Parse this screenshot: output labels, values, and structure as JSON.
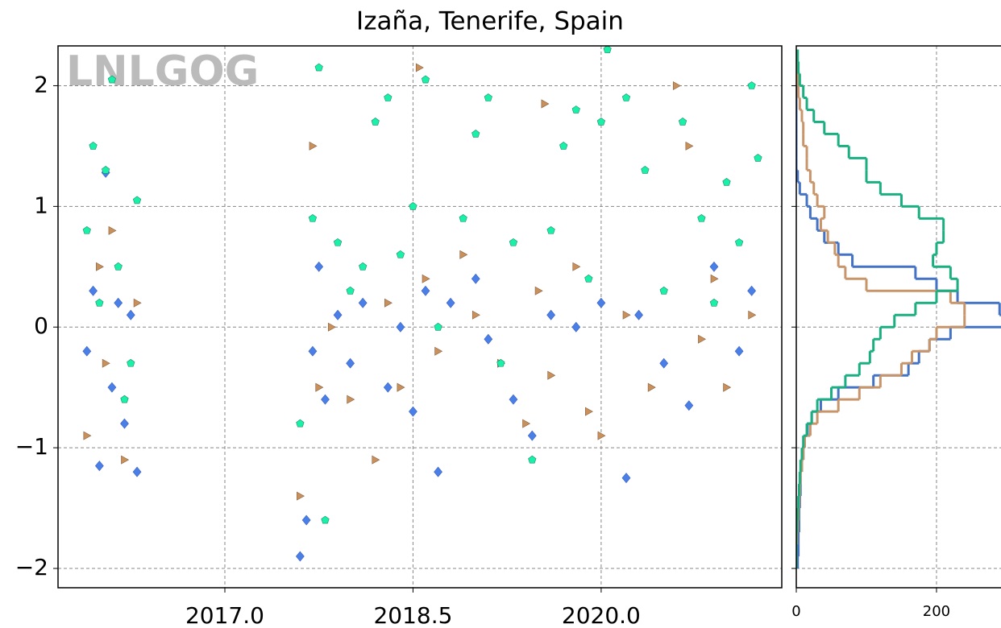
{
  "chart_data": [
    {
      "type": "scatter",
      "title": "Izaña, Tenerife, Spain",
      "watermark": "LNLGOG",
      "xlim": [
        2015.67,
        2021.44
      ],
      "ylim": [
        -2.16,
        2.33
      ],
      "xticks": [
        {
          "value": 2017,
          "label": "2017.0"
        },
        {
          "value": 2018.5,
          "label": "2018.5"
        },
        {
          "value": 2020,
          "label": "2020.0"
        }
      ],
      "yticks": [
        {
          "value": -2,
          "label": "−2"
        },
        {
          "value": -1,
          "label": "−1"
        },
        0,
        1,
        2
      ],
      "grid": true,
      "series": [
        {
          "color": "#4a7fe8",
          "marker": "diamond",
          "x": [
            2015.9,
            2015.95,
            2016.0,
            2016.05,
            2016.1,
            2016.15,
            2016.2,
            2016.3,
            2016.25,
            2017.6,
            2017.65,
            2017.7,
            2017.75,
            2017.8,
            2017.9,
            2018.0,
            2018.1,
            2018.3,
            2018.4,
            2018.5,
            2018.6,
            2018.7,
            2018.8,
            2019.0,
            2019.1,
            2019.3,
            2019.45,
            2019.6,
            2019.8,
            2020.0,
            2020.2,
            2020.3,
            2020.5,
            2020.7,
            2020.9,
            2021.1,
            2021.2
          ],
          "values": [
            -0.2,
            0.3,
            -1.15,
            1.28,
            -0.5,
            0.2,
            -0.8,
            -1.2,
            0.1,
            -1.9,
            -1.6,
            -0.2,
            0.5,
            -0.6,
            0.1,
            -0.3,
            0.2,
            -0.5,
            0.0,
            -0.7,
            0.3,
            -1.2,
            0.2,
            0.4,
            -0.1,
            -0.6,
            -0.9,
            0.1,
            0.0,
            0.2,
            -1.25,
            0.1,
            -0.3,
            -0.65,
            0.5,
            -0.2,
            0.3
          ]
        },
        {
          "color": "#c8905a",
          "marker": "triangle",
          "x": [
            2015.9,
            2016.0,
            2016.05,
            2016.1,
            2016.2,
            2016.3,
            2017.6,
            2017.7,
            2017.75,
            2017.85,
            2018.0,
            2018.2,
            2018.3,
            2018.4,
            2018.55,
            2018.6,
            2018.7,
            2018.9,
            2019.0,
            2019.2,
            2019.4,
            2019.5,
            2019.55,
            2019.6,
            2019.8,
            2019.9,
            2020.0,
            2020.2,
            2020.4,
            2020.6,
            2020.7,
            2020.8,
            2020.9,
            2021.0,
            2021.2
          ],
          "values": [
            -0.9,
            0.5,
            -0.3,
            0.8,
            -1.1,
            0.2,
            -1.4,
            1.5,
            -0.5,
            0.0,
            -0.6,
            -1.1,
            0.2,
            -0.5,
            2.15,
            0.4,
            -0.2,
            0.6,
            0.1,
            -0.3,
            -0.8,
            0.3,
            1.85,
            -0.4,
            0.5,
            -0.7,
            -0.9,
            0.1,
            -0.5,
            2.0,
            1.5,
            -0.1,
            0.4,
            -0.5,
            0.1
          ]
        },
        {
          "color": "#19f0a8",
          "marker": "pentagon",
          "x": [
            2015.9,
            2015.95,
            2016.0,
            2016.05,
            2016.1,
            2016.15,
            2016.2,
            2016.25,
            2016.3,
            2017.6,
            2017.7,
            2017.75,
            2017.8,
            2017.9,
            2018.0,
            2018.1,
            2018.2,
            2018.3,
            2018.4,
            2018.5,
            2018.6,
            2018.7,
            2018.9,
            2019.0,
            2019.1,
            2019.2,
            2019.3,
            2019.45,
            2019.6,
            2019.7,
            2019.8,
            2019.9,
            2020.0,
            2020.05,
            2020.2,
            2020.35,
            2020.5,
            2020.65,
            2020.8,
            2020.9,
            2021.0,
            2021.1,
            2021.2,
            2021.25
          ],
          "values": [
            0.8,
            1.5,
            0.2,
            1.3,
            2.05,
            0.5,
            -0.6,
            -0.3,
            1.05,
            -0.8,
            0.9,
            2.15,
            -1.6,
            0.7,
            0.3,
            0.5,
            1.7,
            1.9,
            0.6,
            1.0,
            2.05,
            0.0,
            0.9,
            1.6,
            1.9,
            -0.3,
            0.7,
            -1.1,
            0.8,
            1.5,
            1.8,
            0.4,
            1.7,
            2.3,
            1.9,
            1.3,
            0.3,
            1.7,
            0.9,
            0.2,
            1.2,
            0.7,
            2.0,
            1.4
          ]
        }
      ]
    },
    {
      "type": "histogram",
      "orientation": "horizontal",
      "xlim": [
        0,
        292
      ],
      "ylim": [
        -2.16,
        2.33
      ],
      "xticks": [
        0,
        200
      ],
      "bins": [
        -2.0,
        -1.9,
        -1.8,
        -1.7,
        -1.6,
        -1.5,
        -1.4,
        -1.3,
        -1.2,
        -1.1,
        -1.0,
        -0.9,
        -0.8,
        -0.7,
        -0.6,
        -0.5,
        -0.4,
        -0.3,
        -0.2,
        -0.1,
        0.0,
        0.1,
        0.2,
        0.3,
        0.4,
        0.5,
        0.6,
        0.7,
        0.8,
        0.9,
        1.0,
        1.1,
        1.2,
        1.3,
        1.4,
        1.5,
        1.6,
        1.7,
        1.8,
        1.9,
        2.0,
        2.1,
        2.2,
        2.3
      ],
      "series": [
        {
          "color": "#4472c4",
          "values": [
            2,
            3,
            3,
            4,
            4,
            5,
            6,
            6,
            8,
            10,
            12,
            16,
            22,
            35,
            60,
            110,
            160,
            175,
            190,
            220,
            300,
            290,
            230,
            200,
            170,
            80,
            60,
            40,
            30,
            20,
            15,
            5,
            2,
            0,
            0,
            0,
            0,
            0,
            0,
            0,
            0,
            0,
            0
          ]
        },
        {
          "color": "#c8956a",
          "values": [
            0,
            0,
            1,
            2,
            3,
            4,
            5,
            6,
            8,
            10,
            12,
            20,
            30,
            60,
            90,
            120,
            150,
            165,
            190,
            200,
            240,
            240,
            220,
            100,
            70,
            60,
            55,
            45,
            35,
            40,
            30,
            25,
            20,
            15,
            15,
            10,
            10,
            8,
            5,
            3,
            2,
            0,
            0
          ]
        },
        {
          "color": "#1aae80",
          "values": [
            0,
            0,
            0,
            1,
            2,
            3,
            4,
            5,
            6,
            8,
            10,
            15,
            22,
            30,
            50,
            70,
            90,
            105,
            110,
            120,
            140,
            170,
            200,
            230,
            220,
            195,
            200,
            210,
            210,
            175,
            150,
            120,
            100,
            100,
            75,
            60,
            40,
            25,
            15,
            10,
            5,
            3,
            2
          ]
        }
      ]
    }
  ]
}
